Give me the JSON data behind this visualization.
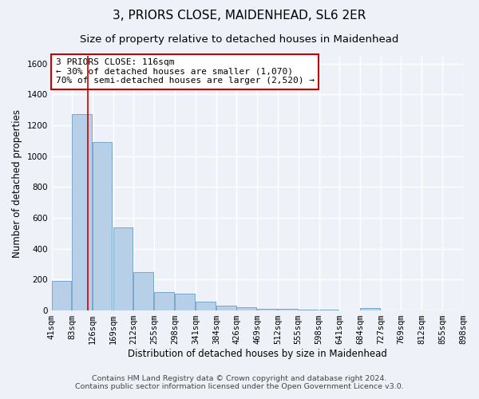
{
  "title": "3, PRIORS CLOSE, MAIDENHEAD, SL6 2ER",
  "subtitle": "Size of property relative to detached houses in Maidenhead",
  "xlabel": "Distribution of detached houses by size in Maidenhead",
  "ylabel": "Number of detached properties",
  "footer_line1": "Contains HM Land Registry data © Crown copyright and database right 2024.",
  "footer_line2": "Contains public sector information licensed under the Open Government Licence v3.0.",
  "bins": [
    41,
    83,
    126,
    169,
    212,
    255,
    298,
    341,
    384,
    426,
    469,
    512,
    555,
    598,
    641,
    684,
    727,
    769,
    812,
    855,
    898
  ],
  "bin_labels": [
    "41sqm",
    "83sqm",
    "126sqm",
    "169sqm",
    "212sqm",
    "255sqm",
    "298sqm",
    "341sqm",
    "384sqm",
    "426sqm",
    "469sqm",
    "512sqm",
    "555sqm",
    "598sqm",
    "641sqm",
    "684sqm",
    "727sqm",
    "769sqm",
    "812sqm",
    "855sqm",
    "898sqm"
  ],
  "values": [
    190,
    1270,
    1090,
    540,
    250,
    120,
    110,
    55,
    30,
    20,
    10,
    10,
    5,
    5,
    2,
    15,
    0,
    0,
    0,
    0
  ],
  "bar_color": "#b8cfe8",
  "bar_edge_color": "#6a9ec5",
  "vline_x": 116,
  "vline_color": "#cc0000",
  "ylim": [
    0,
    1650
  ],
  "yticks": [
    0,
    200,
    400,
    600,
    800,
    1000,
    1200,
    1400,
    1600
  ],
  "annotation_text": "3 PRIORS CLOSE: 116sqm\n← 30% of detached houses are smaller (1,070)\n70% of semi-detached houses are larger (2,520) →",
  "annotation_box_color": "#ffffff",
  "annotation_box_edge_color": "#cc0000",
  "bg_color": "#eef2f8",
  "plot_bg_color": "#eef2f8",
  "grid_color": "#ffffff",
  "title_fontsize": 11,
  "subtitle_fontsize": 9.5,
  "label_fontsize": 8.5,
  "tick_fontsize": 7.5,
  "footer_fontsize": 6.8,
  "annotation_fontsize": 8
}
